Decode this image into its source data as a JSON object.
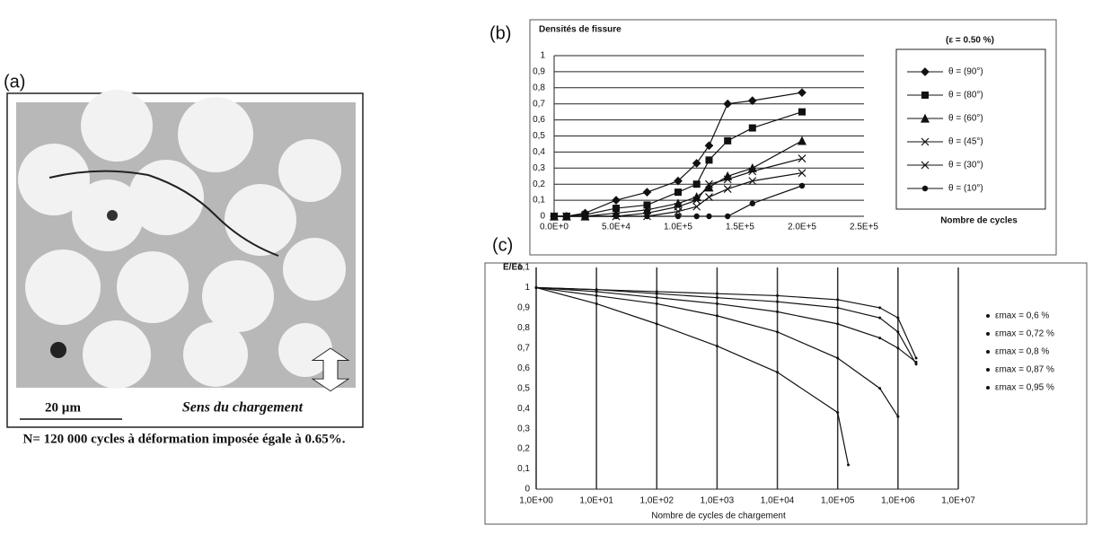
{
  "panel_a": {
    "label": "(a)",
    "scale": "20 µm",
    "direction": "Sens du chargement",
    "caption": "N= 120 000 cycles à déformation imposée égale à 0.65%."
  },
  "chart_data": [
    {
      "type": "line",
      "label": "(b)",
      "ylabel": "Densités de fissure",
      "xlabel": "Nombre de cycles",
      "legend_title": "(ε = 0.50 %)",
      "xlim": [
        0,
        250000
      ],
      "ylim": [
        0,
        1
      ],
      "xticks": [
        {
          "value": 0,
          "label": "0.0E+0"
        },
        {
          "value": 50000,
          "label": "5.0E+4"
        },
        {
          "value": 100000,
          "label": "1.0E+5"
        },
        {
          "value": 150000,
          "label": "1.5E+5"
        },
        {
          "value": 200000,
          "label": "2.0E+5"
        },
        {
          "value": 250000,
          "label": "2.5E+5"
        }
      ],
      "yticks": [
        0,
        {
          "value": 0.1,
          "label": "0,1"
        },
        {
          "value": 0.2,
          "label": "0,2"
        },
        {
          "value": 0.3,
          "label": "0,3"
        },
        {
          "value": 0.4,
          "label": "0,4"
        },
        {
          "value": 0.5,
          "label": "0,5"
        },
        {
          "value": 0.6,
          "label": "0,6"
        },
        {
          "value": 0.7,
          "label": "0,7"
        },
        {
          "value": 0.8,
          "label": "0,8"
        },
        {
          "value": 0.9,
          "label": "0,9"
        },
        1
      ],
      "grid": "y",
      "x": [
        0,
        10000,
        25000,
        50000,
        75000,
        100000,
        115000,
        125000,
        140000,
        160000,
        200000
      ],
      "series": [
        {
          "name": "θ = (90°)",
          "color": "#111111",
          "values": [
            0,
            0,
            0.02,
            0.1,
            0.15,
            0.22,
            0.33,
            0.44,
            0.7,
            0.72,
            0.77
          ]
        },
        {
          "name": "θ = (80°)",
          "color": "#111111",
          "values": [
            0,
            0,
            0.01,
            0.05,
            0.07,
            0.15,
            0.2,
            0.35,
            0.47,
            0.55,
            0.65
          ]
        },
        {
          "name": "θ = (60°)",
          "color": "#111111",
          "values": [
            0,
            0,
            0,
            0.02,
            0.04,
            0.08,
            0.12,
            0.18,
            0.25,
            0.3,
            0.47
          ]
        },
        {
          "name": "θ = (45°)",
          "color": "#111111",
          "values": [
            0,
            0,
            0,
            0,
            0.02,
            0.06,
            0.1,
            0.2,
            0.23,
            0.28,
            0.36
          ]
        },
        {
          "name": "θ = (30°)",
          "color": "#111111",
          "values": [
            0,
            0,
            0,
            0,
            0,
            0.03,
            0.06,
            0.12,
            0.17,
            0.22,
            0.27
          ]
        },
        {
          "name": "θ = (10°)",
          "color": "#111111",
          "values": [
            0,
            0,
            0,
            0,
            0,
            0,
            0,
            0,
            0,
            0.08,
            0.19
          ]
        }
      ]
    },
    {
      "type": "line",
      "label": "(c)",
      "ylabel": "E/Eo",
      "xlabel": "Nombre de cycles de chargement",
      "xscale": "log",
      "xlim": [
        1,
        10000000
      ],
      "ylim": [
        0,
        1.1
      ],
      "xticks": [
        {
          "value": 1,
          "label": "1,0E+00"
        },
        {
          "value": 10,
          "label": "1,0E+01"
        },
        {
          "value": 100,
          "label": "1,0E+02"
        },
        {
          "value": 1000,
          "label": "1,0E+03"
        },
        {
          "value": 10000,
          "label": "1,0E+04"
        },
        {
          "value": 100000,
          "label": "1,0E+05"
        },
        {
          "value": 1000000,
          "label": "1,0E+06"
        },
        {
          "value": 10000000,
          "label": "1,0E+07"
        }
      ],
      "yticks": [
        0,
        {
          "value": 0.1,
          "label": "0,1"
        },
        {
          "value": 0.2,
          "label": "0,2"
        },
        {
          "value": 0.3,
          "label": "0,3"
        },
        {
          "value": 0.4,
          "label": "0,4"
        },
        {
          "value": 0.5,
          "label": "0,5"
        },
        {
          "value": 0.6,
          "label": "0,6"
        },
        {
          "value": 0.7,
          "label": "0,7"
        },
        {
          "value": 0.8,
          "label": "0,8"
        },
        {
          "value": 0.9,
          "label": "0,9"
        },
        1,
        {
          "value": 1.1,
          "label": "1,1"
        }
      ],
      "grid": "x",
      "series": [
        {
          "name": "εmax = 0,6 %",
          "color": "#111111",
          "x": [
            1,
            10,
            100,
            1000,
            10000,
            100000,
            500000,
            1000000,
            2000000
          ],
          "values": [
            1,
            0.99,
            0.98,
            0.97,
            0.96,
            0.94,
            0.9,
            0.85,
            0.65
          ]
        },
        {
          "name": "εmax = 0,72 %",
          "color": "#111111",
          "x": [
            1,
            10,
            100,
            1000,
            10000,
            100000,
            500000,
            1000000,
            2000000
          ],
          "values": [
            1,
            0.99,
            0.97,
            0.95,
            0.93,
            0.9,
            0.85,
            0.78,
            0.62
          ]
        },
        {
          "name": "εmax = 0,8 %",
          "color": "#111111",
          "x": [
            1,
            10,
            100,
            1000,
            10000,
            100000,
            500000,
            1000000,
            2000000
          ],
          "values": [
            1,
            0.98,
            0.95,
            0.92,
            0.88,
            0.82,
            0.75,
            0.7,
            0.63
          ]
        },
        {
          "name": "εmax = 0,87 %",
          "color": "#111111",
          "x": [
            1,
            10,
            100,
            1000,
            10000,
            100000,
            500000,
            1000000
          ],
          "values": [
            1,
            0.96,
            0.92,
            0.86,
            0.78,
            0.65,
            0.5,
            0.36
          ]
        },
        {
          "name": "εmax = 0,95 %",
          "color": "#111111",
          "x": [
            1,
            10,
            100,
            1000,
            10000,
            100000,
            150000
          ],
          "values": [
            1,
            0.92,
            0.82,
            0.71,
            0.58,
            0.38,
            0.12
          ]
        }
      ]
    }
  ]
}
